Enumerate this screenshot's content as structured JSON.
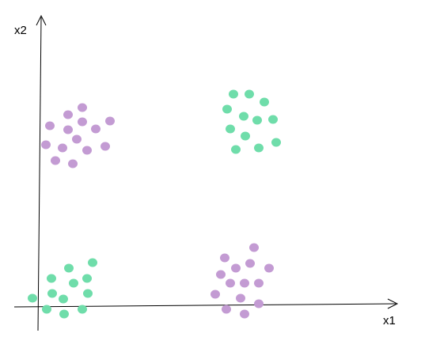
{
  "axes": {
    "x_label": "x1",
    "y_label": "x2",
    "color": "#000000"
  },
  "colors": {
    "purple": "#c39bd3",
    "green": "#6fddaa"
  },
  "clusters": [
    {
      "id": "top-left",
      "color_key": "purple",
      "points": [
        [
          58,
          183
        ],
        [
          63,
          159
        ],
        [
          70,
          203
        ],
        [
          79,
          187
        ],
        [
          86,
          145
        ],
        [
          86,
          164
        ],
        [
          92,
          207
        ],
        [
          97,
          176
        ],
        [
          104,
          136
        ],
        [
          104,
          154
        ],
        [
          110,
          190
        ],
        [
          121,
          163
        ],
        [
          133,
          185
        ],
        [
          139,
          153
        ]
      ]
    },
    {
      "id": "top-right",
      "color_key": "green",
      "points": [
        [
          287,
          138
        ],
        [
          291,
          163
        ],
        [
          295,
          119
        ],
        [
          298,
          189
        ],
        [
          308,
          147
        ],
        [
          310,
          172
        ],
        [
          315,
          119
        ],
        [
          325,
          152
        ],
        [
          327,
          187
        ],
        [
          334,
          129
        ],
        [
          345,
          151
        ],
        [
          349,
          180
        ]
      ]
    },
    {
      "id": "bottom-left",
      "color_key": "green",
      "points": [
        [
          41,
          377
        ],
        [
          59,
          391
        ],
        [
          65,
          352
        ],
        [
          66,
          371
        ],
        [
          80,
          378
        ],
        [
          81,
          397
        ],
        [
          87,
          339
        ],
        [
          93,
          358
        ],
        [
          104,
          391
        ],
        [
          110,
          352
        ],
        [
          111,
          371
        ],
        [
          117,
          332
        ]
      ]
    },
    {
      "id": "bottom-right",
      "color_key": "purple",
      "points": [
        [
          272,
          372
        ],
        [
          279,
          347
        ],
        [
          284,
          326
        ],
        [
          286,
          391
        ],
        [
          291,
          358
        ],
        [
          298,
          339
        ],
        [
          304,
          377
        ],
        [
          309,
          358
        ],
        [
          309,
          397
        ],
        [
          316,
          333
        ],
        [
          321,
          313
        ],
        [
          327,
          358
        ],
        [
          327,
          384
        ],
        [
          340,
          339
        ]
      ]
    }
  ]
}
